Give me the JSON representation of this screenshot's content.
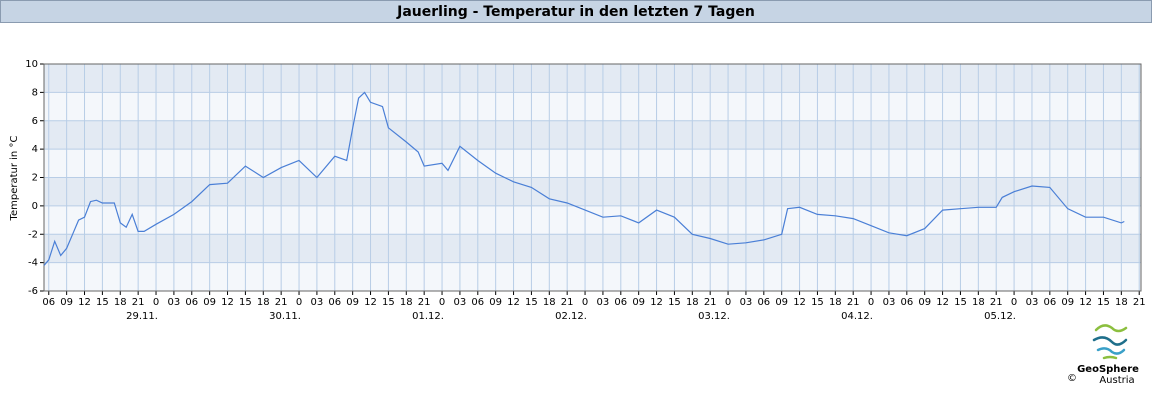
{
  "chart_data": {
    "type": "line",
    "title": "Jauerling - Temperatur in den letzten 7 Tagen",
    "y_label": "Temperatur in °C",
    "logo_name": "GeoSphere",
    "logo_sub": "Austria",
    "copyright": "©",
    "xlim": [
      5.2,
      189.3
    ],
    "ylim": [
      -6,
      10
    ],
    "yticks": [
      -6,
      -4,
      -2,
      0,
      2,
      4,
      6,
      8,
      10
    ],
    "xticks": [
      {
        "value": 6,
        "label": "06"
      },
      {
        "value": 9,
        "label": "09"
      },
      {
        "value": 12,
        "label": "12"
      },
      {
        "value": 15,
        "label": "15"
      },
      {
        "value": 18,
        "label": "18"
      },
      {
        "value": 21,
        "label": "21"
      },
      {
        "value": 24,
        "label": "0"
      },
      {
        "value": 27,
        "label": "03"
      },
      {
        "value": 30,
        "label": "06"
      },
      {
        "value": 33,
        "label": "09"
      },
      {
        "value": 36,
        "label": "12"
      },
      {
        "value": 39,
        "label": "15"
      },
      {
        "value": 42,
        "label": "18"
      },
      {
        "value": 45,
        "label": "21"
      },
      {
        "value": 48,
        "label": "0"
      },
      {
        "value": 51,
        "label": "03"
      },
      {
        "value": 54,
        "label": "06"
      },
      {
        "value": 57,
        "label": "09"
      },
      {
        "value": 60,
        "label": "12"
      },
      {
        "value": 63,
        "label": "15"
      },
      {
        "value": 66,
        "label": "18"
      },
      {
        "value": 69,
        "label": "21"
      },
      {
        "value": 72,
        "label": "0"
      },
      {
        "value": 75,
        "label": "03"
      },
      {
        "value": 78,
        "label": "06"
      },
      {
        "value": 81,
        "label": "09"
      },
      {
        "value": 84,
        "label": "12"
      },
      {
        "value": 87,
        "label": "15"
      },
      {
        "value": 90,
        "label": "18"
      },
      {
        "value": 93,
        "label": "21"
      },
      {
        "value": 96,
        "label": "0"
      },
      {
        "value": 99,
        "label": "03"
      },
      {
        "value": 102,
        "label": "06"
      },
      {
        "value": 105,
        "label": "09"
      },
      {
        "value": 108,
        "label": "12"
      },
      {
        "value": 111,
        "label": "15"
      },
      {
        "value": 114,
        "label": "18"
      },
      {
        "value": 117,
        "label": "21"
      },
      {
        "value": 120,
        "label": "0"
      },
      {
        "value": 123,
        "label": "03"
      },
      {
        "value": 126,
        "label": "06"
      },
      {
        "value": 129,
        "label": "09"
      },
      {
        "value": 132,
        "label": "12"
      },
      {
        "value": 135,
        "label": "15"
      },
      {
        "value": 138,
        "label": "18"
      },
      {
        "value": 141,
        "label": "21"
      },
      {
        "value": 144,
        "label": "0"
      },
      {
        "value": 147,
        "label": "03"
      },
      {
        "value": 150,
        "label": "06"
      },
      {
        "value": 153,
        "label": "09"
      },
      {
        "value": 156,
        "label": "12"
      },
      {
        "value": 159,
        "label": "15"
      },
      {
        "value": 162,
        "label": "18"
      },
      {
        "value": 165,
        "label": "21"
      },
      {
        "value": 168,
        "label": "0"
      },
      {
        "value": 171,
        "label": "03"
      },
      {
        "value": 174,
        "label": "06"
      },
      {
        "value": 177,
        "label": "09"
      },
      {
        "value": 180,
        "label": "12"
      },
      {
        "value": 183,
        "label": "15"
      },
      {
        "value": 186,
        "label": "18"
      },
      {
        "value": 189,
        "label": "21"
      }
    ],
    "day_labels": [
      {
        "value": 24,
        "label": "29.11."
      },
      {
        "value": 48,
        "label": "30.11."
      },
      {
        "value": 72,
        "label": "01.12."
      },
      {
        "value": 96,
        "label": "02.12."
      },
      {
        "value": 120,
        "label": "03.12."
      },
      {
        "value": 144,
        "label": "04.12."
      },
      {
        "value": 168,
        "label": "05.12."
      }
    ],
    "grid": true,
    "color": "#4a7fd6",
    "x": [
      5.2,
      6,
      7,
      8,
      9,
      10,
      11,
      12,
      13,
      14,
      15,
      16,
      17,
      18,
      19,
      20,
      21,
      22,
      24,
      27,
      30,
      33,
      36,
      39,
      42,
      45,
      48,
      51,
      54,
      56,
      57,
      58,
      59,
      60,
      62,
      63,
      66,
      68,
      69,
      72,
      73,
      75,
      78,
      81,
      84,
      87,
      90,
      93,
      96,
      99,
      102,
      105,
      108,
      111,
      114,
      117,
      120,
      123,
      126,
      129,
      130,
      132,
      135,
      138,
      141,
      144,
      147,
      150,
      153,
      156,
      159,
      162,
      165,
      166,
      168,
      171,
      174,
      177,
      180,
      183,
      186,
      186.5
    ],
    "values": [
      -4.2,
      -3.8,
      -2.5,
      -3.5,
      -3,
      -2,
      -1,
      -0.8,
      0.3,
      0.4,
      0.2,
      0.2,
      0.2,
      -1.2,
      -1.5,
      -0.6,
      -1.8,
      -1.8,
      -1.3,
      -0.6,
      0.3,
      1.5,
      1.6,
      2.8,
      2,
      2.7,
      3.2,
      2,
      3.5,
      3.2,
      5.5,
      7.6,
      8,
      7.3,
      7,
      5.5,
      4.5,
      3.8,
      2.8,
      3,
      2.5,
      4.2,
      3.2,
      2.3,
      1.7,
      1.3,
      0.5,
      0.2,
      -0.3,
      -0.8,
      -0.7,
      -1.2,
      -0.3,
      -0.8,
      -2,
      -2.3,
      -2.7,
      -2.6,
      -2.4,
      -2,
      -0.2,
      -0.1,
      -0.6,
      -0.7,
      -0.9,
      -1.4,
      -1.9,
      -2.1,
      -1.6,
      -0.3,
      -0.2,
      -0.1,
      -0.1,
      0.6,
      1,
      1.4,
      1.3,
      -0.2,
      -0.8,
      -0.8,
      -1.2,
      -1.1
    ]
  }
}
